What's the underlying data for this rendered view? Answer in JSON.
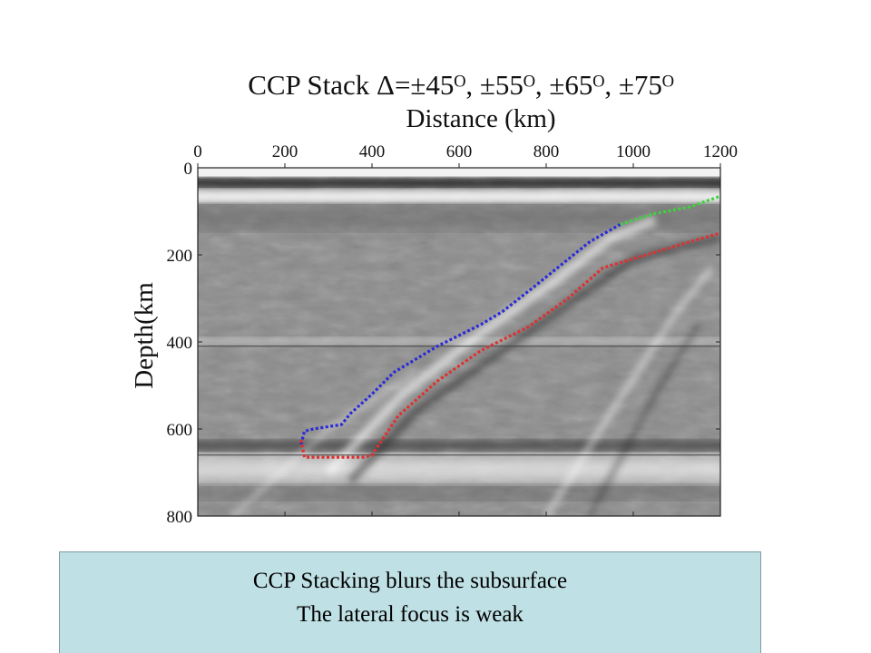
{
  "chart_data": {
    "type": "seismic-section",
    "title": "CCP Stack Δ=±45ᴼ, ±55ᴼ, ±65ᴼ, ±75ᴼ",
    "xlabel": "Distance (km)",
    "ylabel": "Depth(km",
    "xlim": [
      0,
      1200
    ],
    "ylim": [
      0,
      800
    ],
    "x_ticks": [
      "0",
      "200",
      "400",
      "600",
      "800",
      "1000",
      "1200"
    ],
    "y_ticks": [
      "0",
      "200",
      "400",
      "600",
      "800"
    ],
    "horizontal_lines": [
      410,
      660
    ],
    "traces": [
      {
        "color": "#2b2bd9",
        "points": [
          [
            237,
            635
          ],
          [
            245,
            605
          ],
          [
            265,
            600
          ],
          [
            330,
            590
          ],
          [
            350,
            565
          ],
          [
            400,
            520
          ],
          [
            450,
            470
          ],
          [
            550,
            410
          ],
          [
            650,
            360
          ],
          [
            700,
            330
          ],
          [
            770,
            275
          ],
          [
            900,
            170
          ],
          [
            970,
            130
          ]
        ]
      },
      {
        "color": "#3fd23f",
        "points": [
          [
            970,
            130
          ],
          [
            1050,
            105
          ],
          [
            1130,
            90
          ],
          [
            1200,
            65
          ]
        ]
      },
      {
        "color": "#e03030",
        "points": [
          [
            237,
            625
          ],
          [
            245,
            665
          ],
          [
            380,
            665
          ],
          [
            400,
            660
          ],
          [
            460,
            570
          ],
          [
            550,
            490
          ],
          [
            650,
            420
          ],
          [
            760,
            365
          ],
          [
            850,
            300
          ],
          [
            930,
            230
          ],
          [
            1030,
            200
          ],
          [
            1130,
            170
          ],
          [
            1200,
            150
          ]
        ]
      }
    ],
    "grid": false,
    "colormap": "gray"
  },
  "caption": {
    "line1": "CCP Stacking blurs the subsurface",
    "line2": "The lateral focus is weak"
  }
}
